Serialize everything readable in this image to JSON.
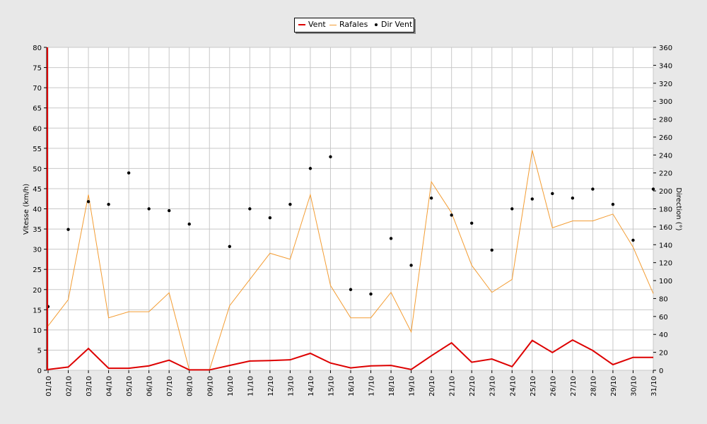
{
  "chart_data": {
    "type": "line",
    "categories": [
      "01/10",
      "02/10",
      "03/10",
      "04/10",
      "05/10",
      "06/10",
      "07/10",
      "08/10",
      "09/10",
      "10/10",
      "11/10",
      "12/10",
      "13/10",
      "14/10",
      "15/10",
      "16/10",
      "17/10",
      "18/10",
      "19/10",
      "20/10",
      "21/10",
      "22/10",
      "23/10",
      "24/10",
      "25/10",
      "26/10",
      "27/10",
      "28/10",
      "29/10",
      "30/10",
      "31/10"
    ],
    "ylabel": "Vitesse (km/h)",
    "ylim": [
      0,
      80
    ],
    "yticks": [
      0,
      5,
      10,
      15,
      20,
      25,
      30,
      35,
      40,
      45,
      50,
      55,
      60,
      65,
      70,
      75,
      80
    ],
    "y2label": "Direction (°)",
    "y2lim": [
      0,
      360
    ],
    "y2ticks": [
      0,
      20,
      40,
      60,
      80,
      100,
      120,
      140,
      160,
      180,
      200,
      220,
      240,
      260,
      280,
      300,
      320,
      340,
      360
    ],
    "grid": true,
    "legend_position": "top",
    "series": [
      {
        "name": "Vent",
        "type": "line",
        "axis": "left",
        "color": "#dd0000",
        "values": [
          0.2,
          0.8,
          5.4,
          0.5,
          0.5,
          1.1,
          2.5,
          0.1,
          0.1,
          1.2,
          2.3,
          2.4,
          2.6,
          4.2,
          1.8,
          0.6,
          1.1,
          1.2,
          0.2,
          3.6,
          6.8,
          2.0,
          2.8,
          0.9,
          7.4,
          4.4,
          7.5,
          4.9,
          1.4,
          3.2,
          3.2
        ]
      },
      {
        "name": "Rafales",
        "type": "line",
        "axis": "left",
        "color": "#f39c32",
        "values": [
          11.0,
          17.5,
          43.5,
          13.0,
          14.5,
          14.5,
          19.2,
          0.1,
          0.1,
          16.0,
          22.5,
          29.0,
          27.5,
          43.5,
          21.0,
          13.0,
          13.0,
          19.3,
          9.5,
          46.7,
          39.0,
          26.0,
          19.3,
          22.5,
          54.5,
          35.3,
          37.0,
          37.0,
          38.7,
          30.5,
          19.0
        ]
      },
      {
        "name": "Dir Vent",
        "type": "scatter",
        "axis": "right",
        "color": "#000000",
        "values": [
          71,
          157,
          188,
          185,
          220,
          180,
          178,
          163,
          null,
          138,
          180,
          170,
          185,
          225,
          238,
          90,
          85,
          147,
          117,
          192,
          173,
          164,
          134,
          180,
          191,
          197,
          192,
          202,
          185,
          145,
          202
        ]
      }
    ]
  }
}
